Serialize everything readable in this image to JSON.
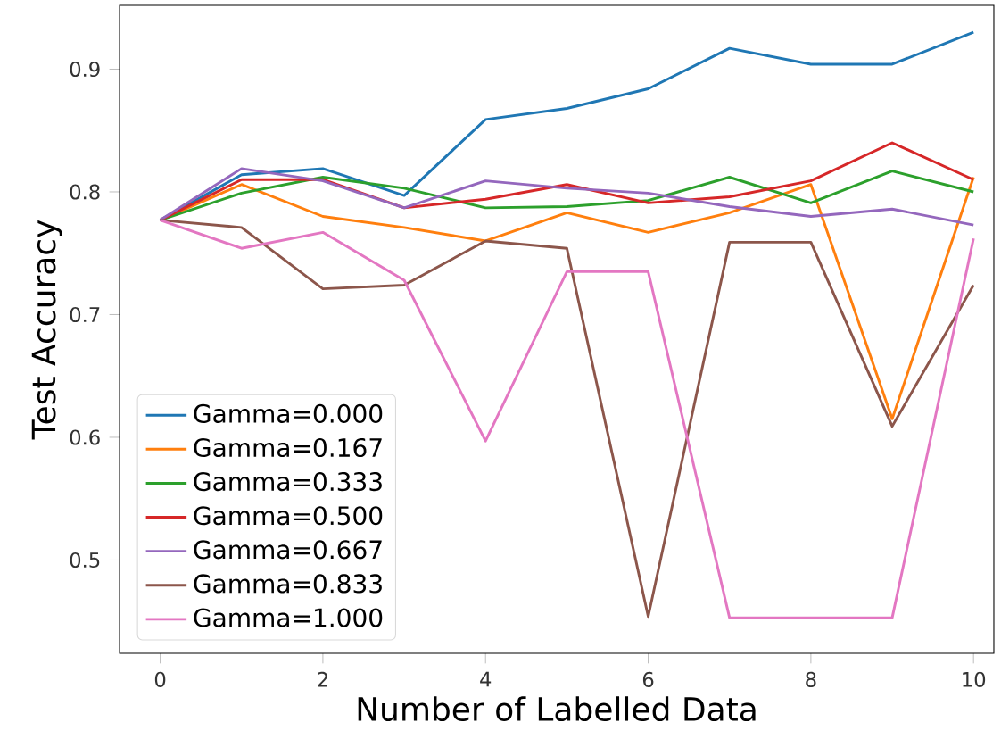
{
  "chart_data": {
    "type": "line",
    "xlabel": "Number of Labelled Data",
    "ylabel": "Test Accuracy",
    "x": [
      0,
      1,
      2,
      3,
      4,
      5,
      6,
      7,
      8,
      9,
      10
    ],
    "xlim": [
      -0.5,
      10.25
    ],
    "ylim": [
      0.424,
      0.952
    ],
    "xticks": [
      0,
      2,
      4,
      6,
      8,
      10
    ],
    "yticks": [
      0.5,
      0.6,
      0.7,
      0.8,
      0.9
    ],
    "legend": "bottom left",
    "grid": false,
    "series": [
      {
        "name": "Gamma=0.000",
        "color": "#1f77b4",
        "values": [
          0.777,
          0.814,
          0.819,
          0.797,
          0.859,
          0.868,
          0.884,
          0.917,
          0.904,
          0.904,
          0.93
        ]
      },
      {
        "name": "Gamma=0.167",
        "color": "#ff7f0e",
        "values": [
          0.777,
          0.806,
          0.78,
          0.771,
          0.76,
          0.783,
          0.767,
          0.783,
          0.806,
          0.615,
          0.812
        ]
      },
      {
        "name": "Gamma=0.333",
        "color": "#2ca02c",
        "values": [
          0.777,
          0.799,
          0.812,
          0.803,
          0.787,
          0.788,
          0.793,
          0.812,
          0.791,
          0.817,
          0.8
        ]
      },
      {
        "name": "Gamma=0.500",
        "color": "#d62728",
        "values": [
          0.777,
          0.81,
          0.81,
          0.787,
          0.794,
          0.806,
          0.791,
          0.796,
          0.809,
          0.84,
          0.81
        ]
      },
      {
        "name": "Gamma=0.667",
        "color": "#9467bd",
        "values": [
          0.777,
          0.819,
          0.809,
          0.787,
          0.809,
          0.803,
          0.799,
          0.788,
          0.78,
          0.786,
          0.773
        ]
      },
      {
        "name": "Gamma=0.833",
        "color": "#8c564b",
        "values": [
          0.777,
          0.771,
          0.721,
          0.724,
          0.76,
          0.754,
          0.454,
          0.759,
          0.759,
          0.609,
          0.724
        ]
      },
      {
        "name": "Gamma=1.000",
        "color": "#e377c2",
        "values": [
          0.777,
          0.754,
          0.767,
          0.728,
          0.597,
          0.735,
          0.735,
          0.453,
          0.453,
          0.453,
          0.762
        ]
      }
    ]
  }
}
